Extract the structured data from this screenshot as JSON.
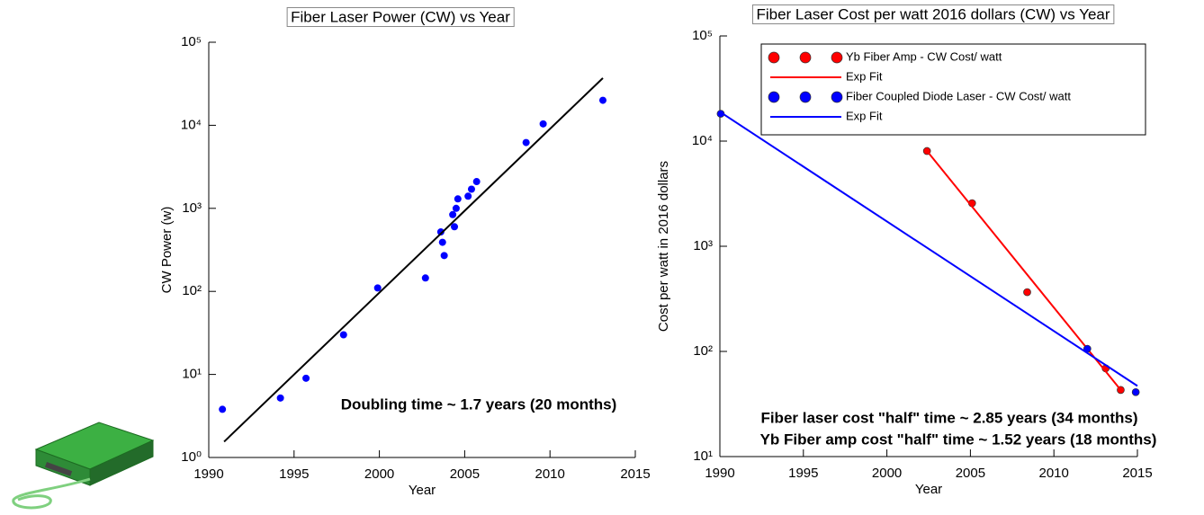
{
  "chart_data": [
    {
      "type": "scatter",
      "title": "Fiber Laser Power (CW) vs Year",
      "x_label": "Year",
      "y_label": "CW Power (w)",
      "log_y": true,
      "xlim": [
        1990,
        2015
      ],
      "xticks": [
        1990,
        1995,
        2000,
        2005,
        2010,
        2015
      ],
      "ylim": [
        1,
        100000
      ],
      "yticks": [
        {
          "value": 1,
          "label": "10⁰"
        },
        {
          "value": 10,
          "label": "10¹"
        },
        {
          "value": 100,
          "label": "10²"
        },
        {
          "value": 1000,
          "label": "10³"
        },
        {
          "value": 10000,
          "label": "10⁴"
        },
        {
          "value": 100000,
          "label": "10⁵"
        }
      ],
      "series": [
        {
          "mode": "markers",
          "color": "#0000ff",
          "x": [
            1990.8,
            1994.2,
            1995.7,
            1997.9,
            1999.9,
            2002.7,
            2003.6,
            2003.7,
            2003.8,
            2004.3,
            2004.4,
            2004.5,
            2004.6,
            2005.2,
            2005.4,
            2005.7,
            2008.6,
            2009.6,
            2013.1
          ],
          "values": [
            3.8,
            5.2,
            9,
            30,
            110,
            145,
            520,
            390,
            270,
            840,
            600,
            1000,
            1300,
            1400,
            1700,
            2100,
            6200,
            10400,
            20000
          ]
        },
        {
          "mode": "line",
          "color": "#000000",
          "x": [
            1990.9,
            2013.1
          ],
          "values": [
            1.55,
            37000
          ]
        }
      ],
      "annotations": [
        {
          "text": "Doubling time ~ 1.7 years (20 months)",
          "color": "#ff0000"
        }
      ]
    },
    {
      "type": "scatter",
      "title": "Fiber Laser Cost per watt 2016 dollars (CW) vs Year",
      "x_label": "Year",
      "y_label": "Cost per watt in 2016 dollars",
      "log_y": true,
      "xlim": [
        1990,
        2015
      ],
      "xticks": [
        1990,
        1995,
        2000,
        2005,
        2010,
        2015
      ],
      "ylim": [
        10,
        100000
      ],
      "yticks": [
        {
          "value": 10,
          "label": "10¹"
        },
        {
          "value": 100,
          "label": "10²"
        },
        {
          "value": 1000,
          "label": "10³"
        },
        {
          "value": 10000,
          "label": "10⁴"
        },
        {
          "value": 100000,
          "label": "10⁵"
        }
      ],
      "series": [
        {
          "name": "Yb Fiber Amp - CW Cost/ watt",
          "mode": "markers",
          "color": "#ff0000",
          "x": [
            2002.4,
            2005.1,
            2008.4,
            2013.1,
            2014.0
          ],
          "values": [
            8050,
            2570,
            366,
            69,
            43
          ]
        },
        {
          "name": "Exp Fit",
          "mode": "line",
          "color": "#ff0000",
          "x": [
            2002.4,
            2014.0
          ],
          "values": [
            8050,
            43
          ]
        },
        {
          "name": "Fiber Coupled Diode Laser - CW Cost/ watt",
          "mode": "markers",
          "color": "#0000ff",
          "x": [
            1990.05,
            2012.0,
            2014.9
          ],
          "values": [
            18200,
            106,
            41
          ]
        },
        {
          "name": "Exp Fit",
          "mode": "line",
          "color": "#0000ff",
          "x": [
            1990,
            2015
          ],
          "values": [
            19000,
            47
          ]
        }
      ],
      "annotations": [
        {
          "text": "Fiber laser cost \"half\" time ~ 2.85 years (34 months)",
          "color": "#0000ff"
        },
        {
          "text": "Yb Fiber amp cost \"half\" time ~ 1.52 years (18 months)",
          "color": "#ff0000"
        }
      ]
    }
  ]
}
